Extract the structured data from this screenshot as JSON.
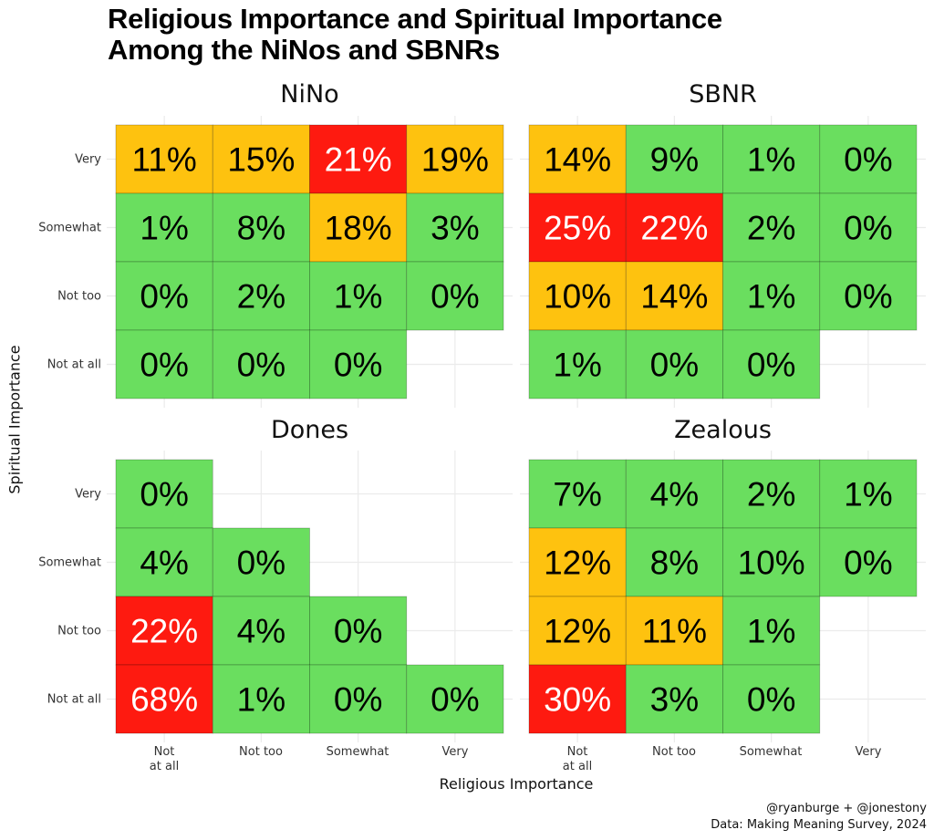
{
  "chart_data": {
    "type": "heatmap",
    "title": "Religious Importance and Spiritual Importance Among the NiNos and SBNRs",
    "title_lines": [
      "Religious Importance and Spiritual Importance",
      "Among the NiNos and SBNRs"
    ],
    "xlabel": "Religious Importance",
    "ylabel": "Spiritual Importance",
    "x_categories": [
      "Not at all",
      "Not too",
      "Somewhat",
      "Very"
    ],
    "x_tick_labels": [
      [
        "Not",
        "at all"
      ],
      [
        "Not too"
      ],
      [
        "Somewhat"
      ],
      [
        "Very"
      ]
    ],
    "y_categories": [
      "Very",
      "Somewhat",
      "Not too",
      "Not at all"
    ],
    "grid": true,
    "color_scale": {
      "low": "#6ade5f",
      "mid": "#fec20f",
      "high": "#fe1a10",
      "text_dark": "#000000",
      "text_light": "#ffffff"
    },
    "panels": [
      {
        "name": "NiNo",
        "cells": [
          {
            "y": "Very",
            "values": [
              11,
              15,
              21,
              19
            ],
            "levels": [
              "mid",
              "mid",
              "high",
              "mid"
            ]
          },
          {
            "y": "Somewhat",
            "values": [
              1,
              8,
              18,
              3
            ],
            "levels": [
              "low",
              "low",
              "mid",
              "low"
            ]
          },
          {
            "y": "Not too",
            "values": [
              0,
              2,
              1,
              0
            ],
            "levels": [
              "low",
              "low",
              "low",
              "low"
            ]
          },
          {
            "y": "Not at all",
            "values": [
              0,
              0,
              0,
              null
            ],
            "levels": [
              "low",
              "low",
              "low",
              null
            ]
          }
        ]
      },
      {
        "name": "SBNR",
        "cells": [
          {
            "y": "Very",
            "values": [
              14,
              9,
              1,
              0
            ],
            "levels": [
              "mid",
              "low",
              "low",
              "low"
            ]
          },
          {
            "y": "Somewhat",
            "values": [
              25,
              22,
              2,
              0
            ],
            "levels": [
              "high",
              "high",
              "low",
              "low"
            ]
          },
          {
            "y": "Not too",
            "values": [
              10,
              14,
              1,
              0
            ],
            "levels": [
              "mid",
              "mid",
              "low",
              "low"
            ]
          },
          {
            "y": "Not at all",
            "values": [
              1,
              0,
              0,
              null
            ],
            "levels": [
              "low",
              "low",
              "low",
              null
            ]
          }
        ]
      },
      {
        "name": "Dones",
        "cells": [
          {
            "y": "Very",
            "values": [
              0,
              null,
              null,
              null
            ],
            "levels": [
              "low",
              null,
              null,
              null
            ]
          },
          {
            "y": "Somewhat",
            "values": [
              4,
              0,
              null,
              null
            ],
            "levels": [
              "low",
              "low",
              null,
              null
            ]
          },
          {
            "y": "Not too",
            "values": [
              22,
              4,
              0,
              null
            ],
            "levels": [
              "high",
              "low",
              "low",
              null
            ]
          },
          {
            "y": "Not at all",
            "values": [
              68,
              1,
              0,
              0
            ],
            "levels": [
              "high",
              "low",
              "low",
              "low"
            ]
          }
        ]
      },
      {
        "name": "Zealous",
        "cells": [
          {
            "y": "Very",
            "values": [
              7,
              4,
              2,
              1
            ],
            "levels": [
              "low",
              "low",
              "low",
              "low"
            ]
          },
          {
            "y": "Somewhat",
            "values": [
              12,
              8,
              10,
              0
            ],
            "levels": [
              "mid",
              "low",
              "low",
              "low"
            ]
          },
          {
            "y": "Not too",
            "values": [
              12,
              11,
              1,
              null
            ],
            "levels": [
              "mid",
              "mid",
              "low",
              null
            ]
          },
          {
            "y": "Not at all",
            "values": [
              30,
              3,
              0,
              null
            ],
            "levels": [
              "high",
              "low",
              "low",
              null
            ]
          }
        ]
      }
    ]
  },
  "caption": {
    "line1": "@ryanburge + @jonestony",
    "line2": "Data: Making Meaning Survey, 2024"
  }
}
